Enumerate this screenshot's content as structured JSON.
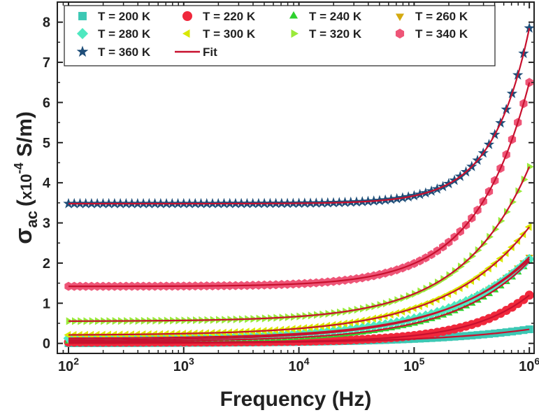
{
  "chart_data": {
    "type": "scatter",
    "xscale": "log",
    "xlim": [
      80,
      1100000
    ],
    "ylim": [
      -0.25,
      8.5
    ],
    "xlabel": "Frequency (Hz)",
    "ylabel": {
      "sym": "σ",
      "sub": "ac",
      "open": "(",
      "mult": "x10",
      "exp": "-4",
      "unit": " S/m)"
    },
    "xticks": [
      {
        "value": 100,
        "base": "10",
        "exp": "2"
      },
      {
        "value": 1000,
        "base": "10",
        "exp": "3"
      },
      {
        "value": 10000,
        "base": "10",
        "exp": "4"
      },
      {
        "value": 100000,
        "base": "10",
        "exp": "5"
      },
      {
        "value": 1000000,
        "base": "10",
        "exp": "6"
      }
    ],
    "yticks": [
      {
        "value": 0,
        "label": "0"
      },
      {
        "value": 1,
        "label": "1"
      },
      {
        "value": 2,
        "label": "2"
      },
      {
        "value": 3,
        "label": "3"
      },
      {
        "value": 4,
        "label": "4"
      },
      {
        "value": 5,
        "label": "5"
      },
      {
        "value": 6,
        "label": "6"
      },
      {
        "value": 7,
        "label": "7"
      },
      {
        "value": 8,
        "label": "8"
      }
    ],
    "fit": {
      "label": "Fit",
      "color": "#c8102e"
    },
    "series": [
      {
        "name": "T = 200 K",
        "marker": "square",
        "color": "#3cc8b4",
        "sigma_dc": 0.0,
        "sigma_1MHz": 0.35,
        "n": 0.5
      },
      {
        "name": "T = 220 K",
        "marker": "circle",
        "color": "#f0283c",
        "sigma_dc": 0.03,
        "sigma_1MHz": 1.2,
        "n": 0.85
      },
      {
        "name": "T = 240 K",
        "marker": "triangle-up",
        "color": "#2ed12e",
        "sigma_dc": 0.05,
        "sigma_1MHz": 2.05,
        "n": 0.65
      },
      {
        "name": "T = 260 K",
        "marker": "triangle-down",
        "color": "#d4aa10",
        "sigma_dc": 0.08,
        "sigma_1MHz": 2.15,
        "n": 0.6
      },
      {
        "name": "T = 280 K",
        "marker": "diamond",
        "color": "#4ee8c0",
        "sigma_dc": 0.12,
        "sigma_1MHz": 2.1,
        "n": 0.6
      },
      {
        "name": "T = 300 K",
        "marker": "triangle-left",
        "color": "#d8e800",
        "sigma_dc": 0.2,
        "sigma_1MHz": 2.9,
        "n": 0.6
      },
      {
        "name": "T = 320 K",
        "marker": "triangle-right",
        "color": "#9aea3a",
        "sigma_dc": 0.55,
        "sigma_1MHz": 4.4,
        "n": 0.75
      },
      {
        "name": "T = 340 K",
        "marker": "hexagon",
        "color": "#ee5577",
        "sigma_dc": 1.42,
        "sigma_1MHz": 6.5,
        "n": 0.95
      },
      {
        "name": "T = 360 K",
        "marker": "star",
        "color": "#1f4e79",
        "sigma_dc": 3.48,
        "sigma_1MHz": 7.85,
        "n": 1.35
      }
    ]
  }
}
